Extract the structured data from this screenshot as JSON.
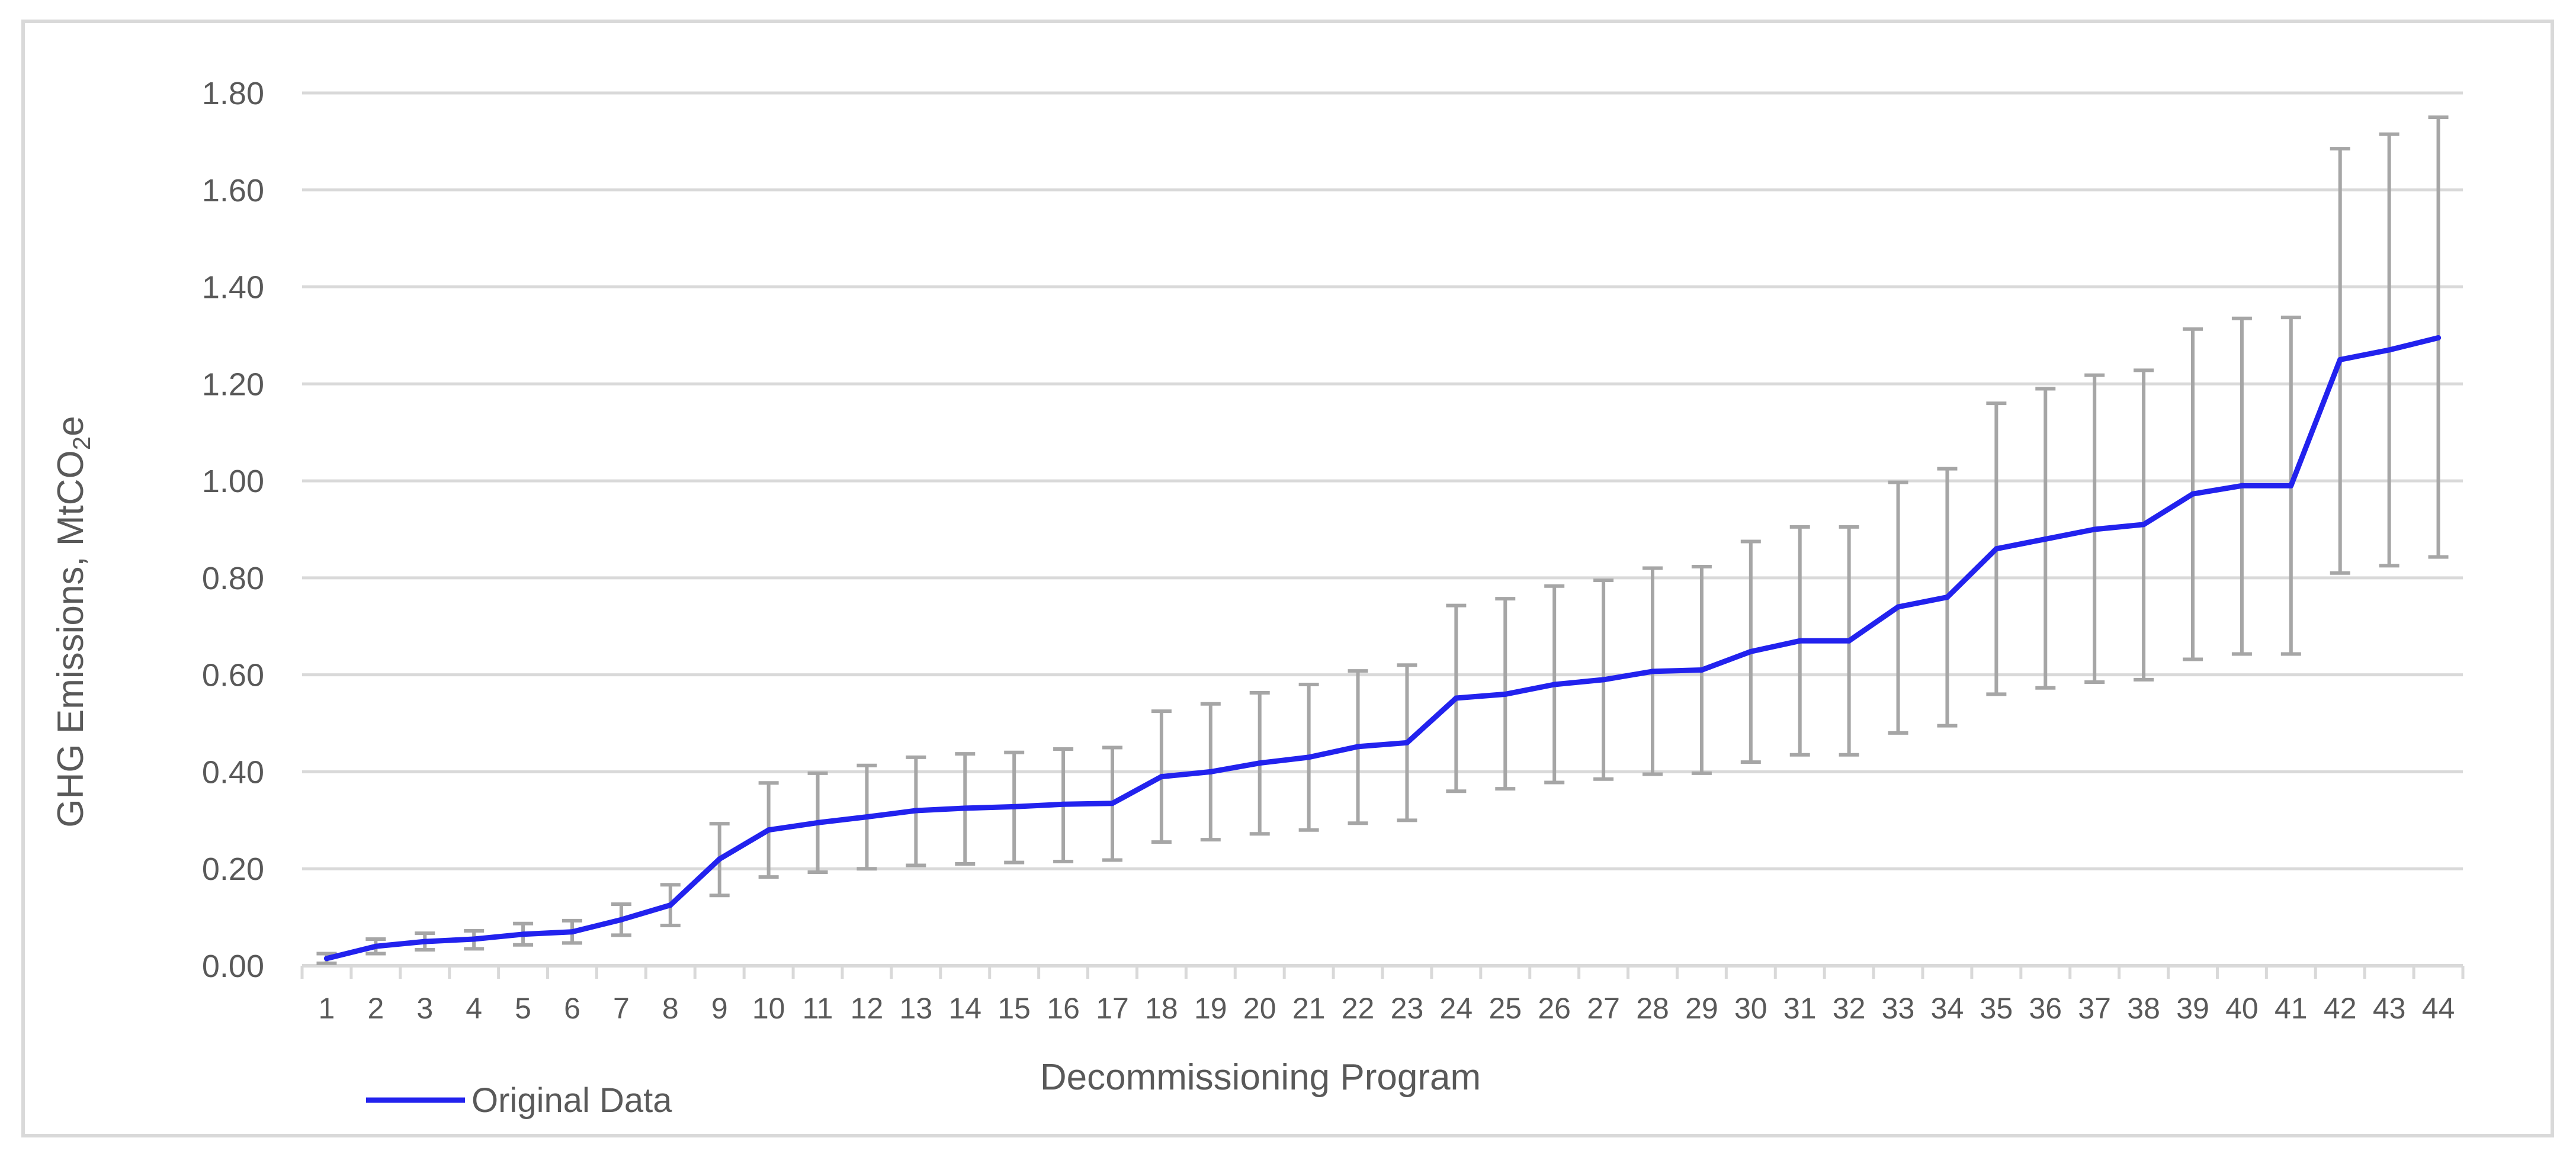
{
  "chart_data": {
    "type": "line",
    "title": "",
    "xlabel": "Decommissioning Program",
    "ylabel": "GHG Emissions, MtCO₂e",
    "ylabel_parts": {
      "main": "GHG Emissions, MtCO",
      "sub": "2",
      "tail": "e"
    },
    "ylim": [
      0,
      1.8
    ],
    "yticks": [
      "0.00",
      "0.20",
      "0.40",
      "0.60",
      "0.80",
      "1.00",
      "1.20",
      "1.40",
      "1.60",
      "1.80"
    ],
    "grid": true,
    "legend_position": "bottom-left",
    "categories": [
      "1",
      "2",
      "3",
      "4",
      "5",
      "6",
      "7",
      "8",
      "9",
      "10",
      "11",
      "12",
      "13",
      "14",
      "15",
      "16",
      "17",
      "18",
      "19",
      "20",
      "21",
      "22",
      "23",
      "24",
      "25",
      "26",
      "27",
      "28",
      "29",
      "30",
      "31",
      "32",
      "33",
      "34",
      "35",
      "36",
      "37",
      "38",
      "39",
      "40",
      "41",
      "42",
      "43",
      "44"
    ],
    "series": [
      {
        "name": "Original Data",
        "color": "#2222ee",
        "values": [
          0.015,
          0.04,
          0.05,
          0.055,
          0.065,
          0.07,
          0.095,
          0.125,
          0.22,
          0.28,
          0.295,
          0.307,
          0.32,
          0.325,
          0.328,
          0.333,
          0.335,
          0.39,
          0.4,
          0.418,
          0.43,
          0.452,
          0.46,
          0.552,
          0.56,
          0.58,
          0.59,
          0.607,
          0.61,
          0.648,
          0.67,
          0.67,
          0.74,
          0.76,
          0.86,
          0.88,
          0.9,
          0.91,
          0.973,
          0.99,
          0.99,
          1.25,
          1.27,
          1.295
        ],
        "error_low": [
          0.005,
          0.025,
          0.033,
          0.035,
          0.043,
          0.047,
          0.063,
          0.083,
          0.145,
          0.183,
          0.193,
          0.2,
          0.207,
          0.21,
          0.213,
          0.215,
          0.218,
          0.255,
          0.26,
          0.272,
          0.28,
          0.294,
          0.3,
          0.36,
          0.365,
          0.378,
          0.385,
          0.395,
          0.397,
          0.42,
          0.435,
          0.435,
          0.48,
          0.495,
          0.56,
          0.573,
          0.585,
          0.59,
          0.632,
          0.643,
          0.643,
          0.81,
          0.825,
          0.843
        ],
        "error_high": [
          0.025,
          0.055,
          0.067,
          0.072,
          0.087,
          0.093,
          0.127,
          0.167,
          0.293,
          0.377,
          0.397,
          0.413,
          0.43,
          0.437,
          0.44,
          0.447,
          0.45,
          0.525,
          0.54,
          0.563,
          0.58,
          0.608,
          0.62,
          0.743,
          0.757,
          0.783,
          0.795,
          0.82,
          0.823,
          0.875,
          0.905,
          0.905,
          0.997,
          1.025,
          1.16,
          1.19,
          1.218,
          1.228,
          1.313,
          1.335,
          1.337,
          1.685,
          1.715,
          1.75
        ]
      }
    ],
    "colors": {
      "line": "#2222ee",
      "error_bar": "#a6a6a6",
      "grid": "#d9d9d9",
      "text": "#595959"
    }
  }
}
